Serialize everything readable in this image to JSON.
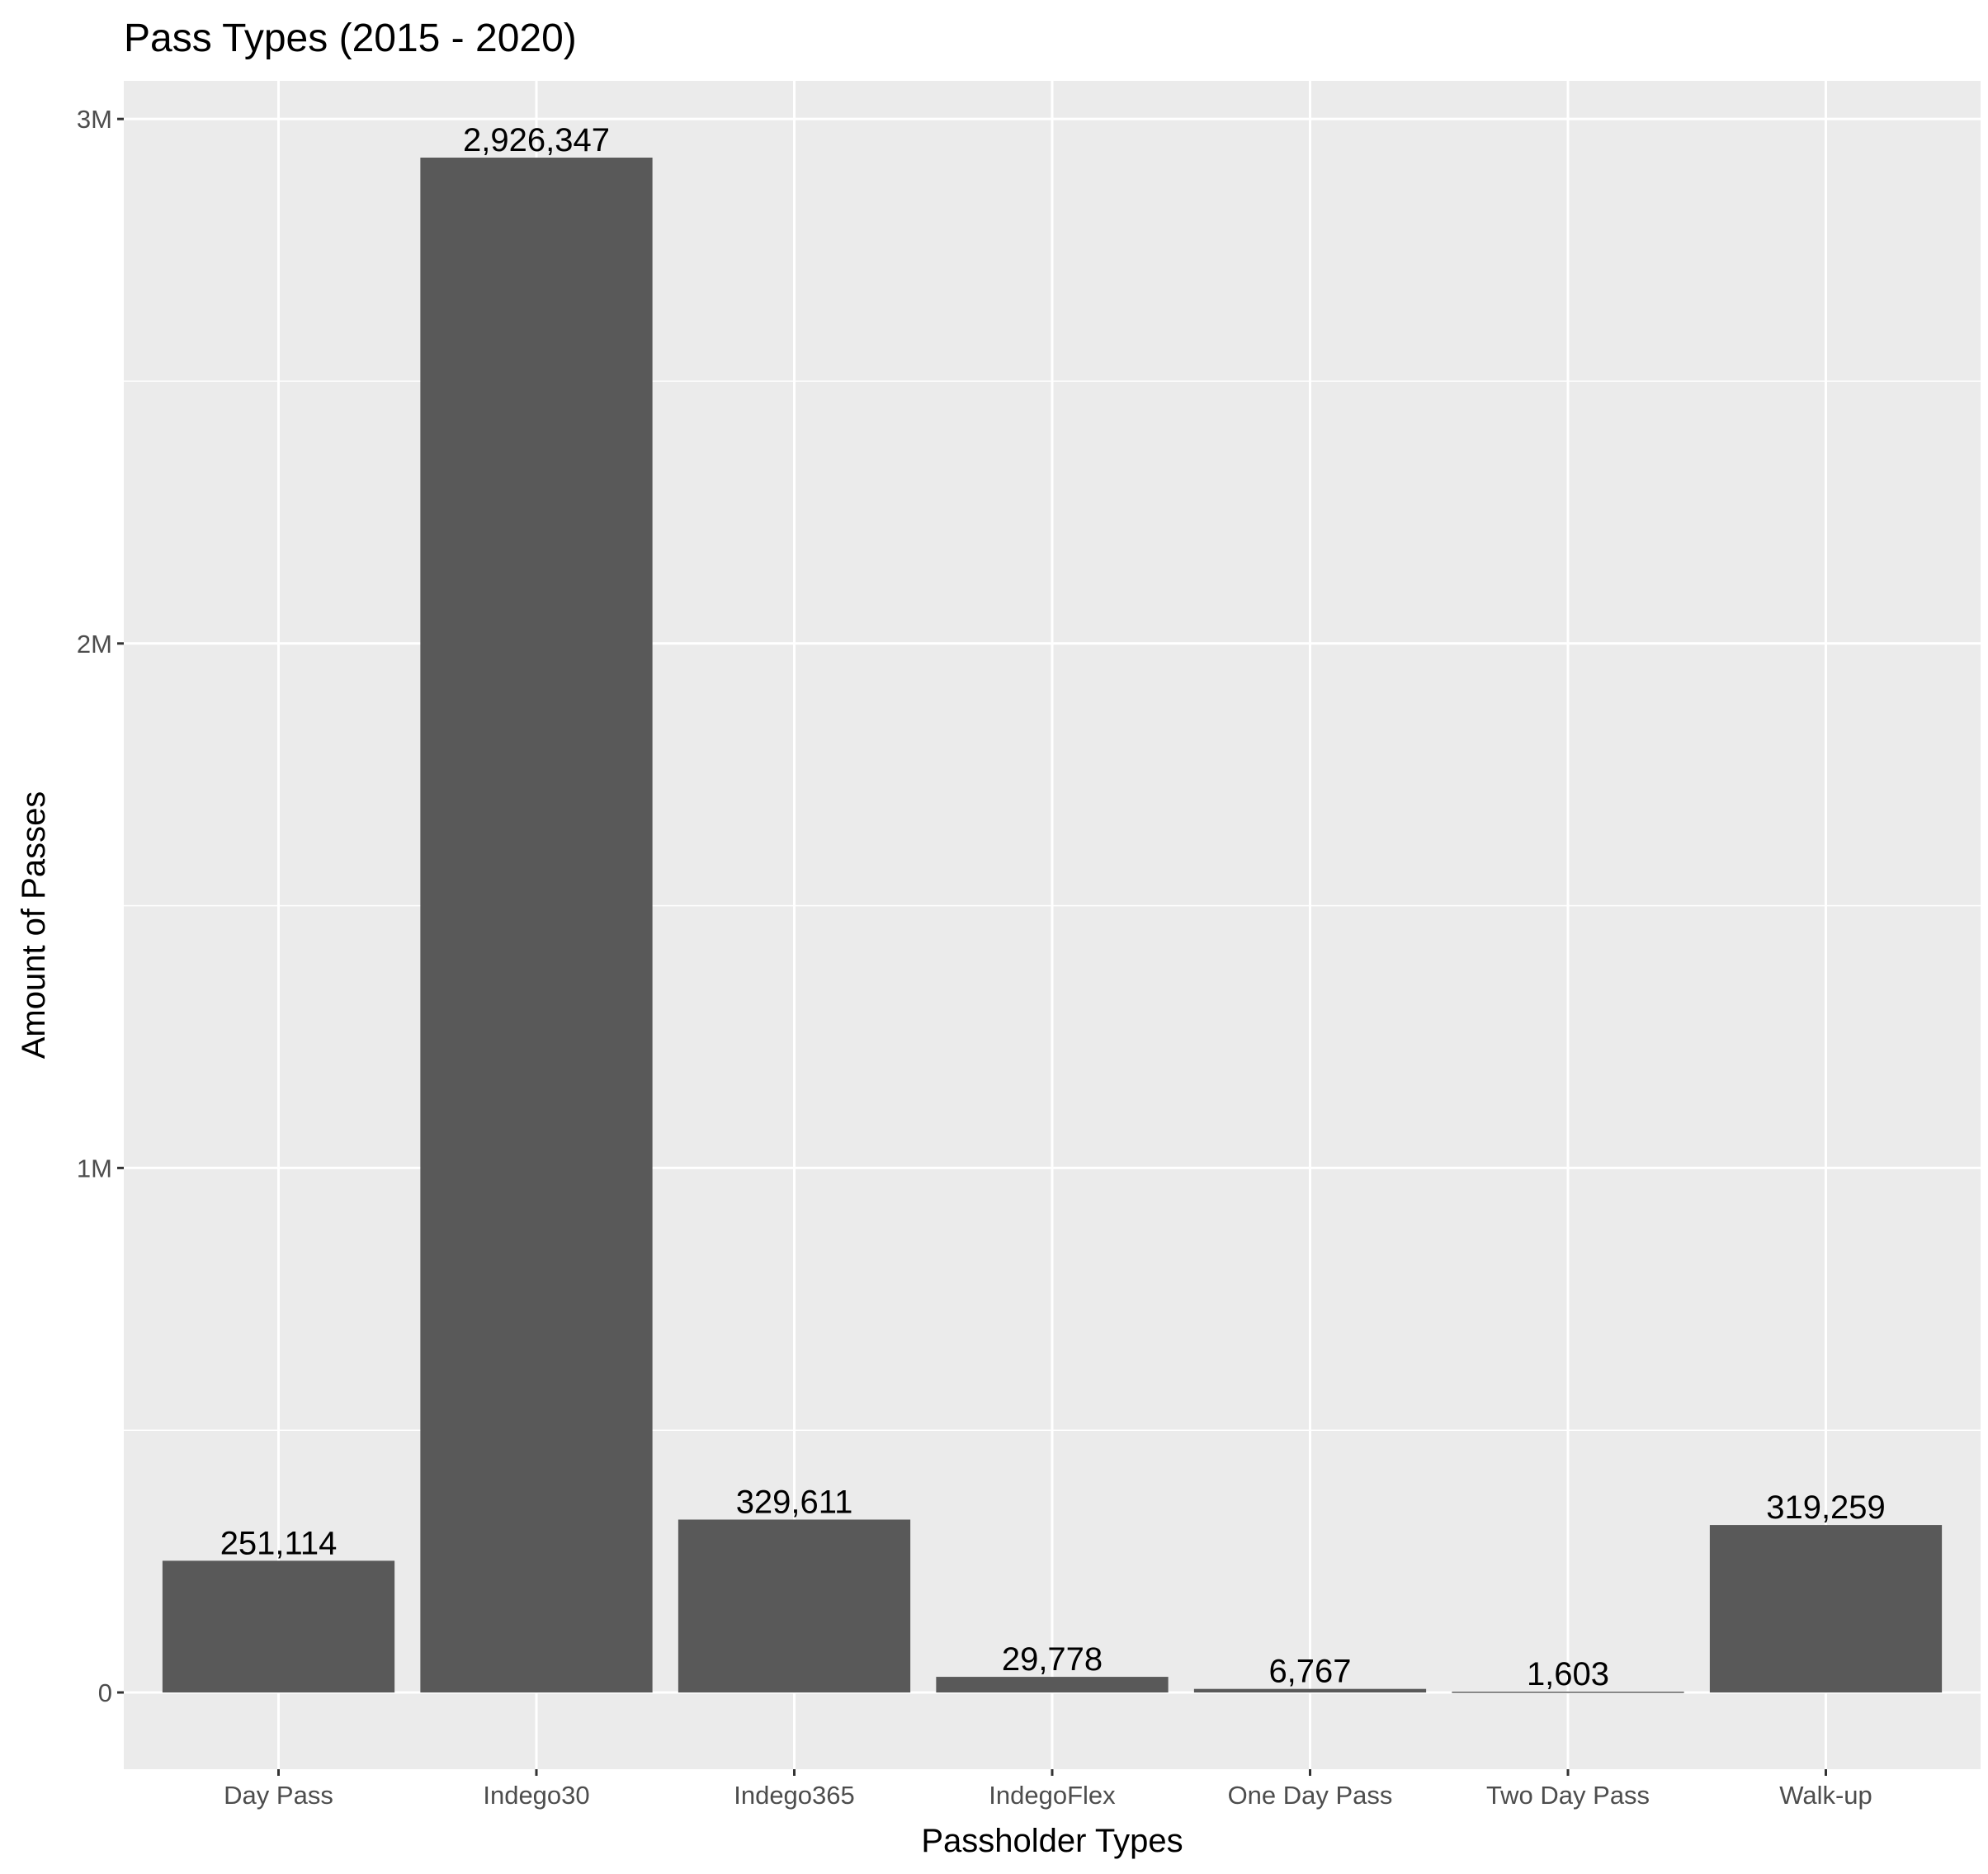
{
  "chart_data": {
    "type": "bar",
    "title": "Pass Types (2015 - 2020)",
    "xlabel": "Passholder Types",
    "ylabel": "Amount of Passes",
    "categories": [
      "Day Pass",
      "Indego30",
      "Indego365",
      "IndegoFlex",
      "One Day Pass",
      "Two Day Pass",
      "Walk-up"
    ],
    "values": [
      251114,
      2926347,
      329611,
      29778,
      6767,
      1603,
      319259
    ],
    "value_labels": [
      "251,114",
      "2,926,347",
      "329,611",
      "29,778",
      "6,767",
      "1,603",
      "319,259"
    ],
    "ylim": [
      -146317,
      3072664
    ],
    "yticks": [
      0,
      1000000,
      2000000,
      3000000
    ],
    "ytick_labels": [
      "0",
      "1M",
      "2M",
      "3M"
    ],
    "grid": true,
    "legend": "none",
    "colors": {
      "bar": "#595959",
      "panel": "#ebebeb",
      "grid": "#ffffff",
      "tick_text": "#4d4d4d",
      "tick_mark": "#333333"
    }
  }
}
